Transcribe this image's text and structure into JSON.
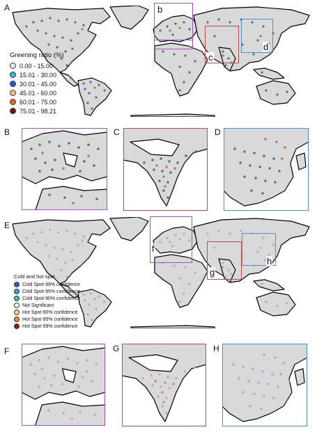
{
  "panels": {
    "A": "A",
    "B": "B",
    "C": "C",
    "D": "D",
    "E": "E",
    "F": "F",
    "G": "G",
    "H": "H"
  },
  "insets": {
    "b": "b",
    "c": "c",
    "d": "d",
    "f": "f",
    "g": "g",
    "h": "h"
  },
  "colors": {
    "box_europe": "#a64dc9",
    "box_india": "#b94a4a",
    "box_east_asia": "#4a8fd6",
    "land": "#d9d9d9",
    "coast": "#000000",
    "greening_points": "#4f6f82",
    "greening_hot_points": "#b07a52"
  },
  "legend_greening": {
    "title": "Greening ratio (%)",
    "items": [
      {
        "label": "0.00 - 15.00",
        "color": "#d7eef8"
      },
      {
        "label": "15.01 - 30.00",
        "color": "#36b6e0"
      },
      {
        "label": "30.01 - 45.00",
        "color": "#1a5fd1"
      },
      {
        "label": "45.01 - 60.00",
        "color": "#f2c27a"
      },
      {
        "label": "60.01 - 75.00",
        "color": "#e8661e"
      },
      {
        "label": "75.01 - 98.21",
        "color": "#7a1010"
      }
    ]
  },
  "legend_hotspot": {
    "title": "Cold and hot spot",
    "items": [
      {
        "label": "Cold Spot-99% confidence",
        "color": "#2a5fc8"
      },
      {
        "label": "Cold Spot-95% confidence",
        "color": "#3fa0d8"
      },
      {
        "label": "Cold Spot-90% confidence",
        "color": "#3dc9b0"
      },
      {
        "label": "Not Significant",
        "color": "#ffffff"
      },
      {
        "label": "Hot Spot-90% confidence",
        "color": "#f3d28a"
      },
      {
        "label": "Hot Spot-95% confidence",
        "color": "#e8922e"
      },
      {
        "label": "Hot Spot-99% confidence",
        "color": "#a0141a"
      }
    ]
  }
}
